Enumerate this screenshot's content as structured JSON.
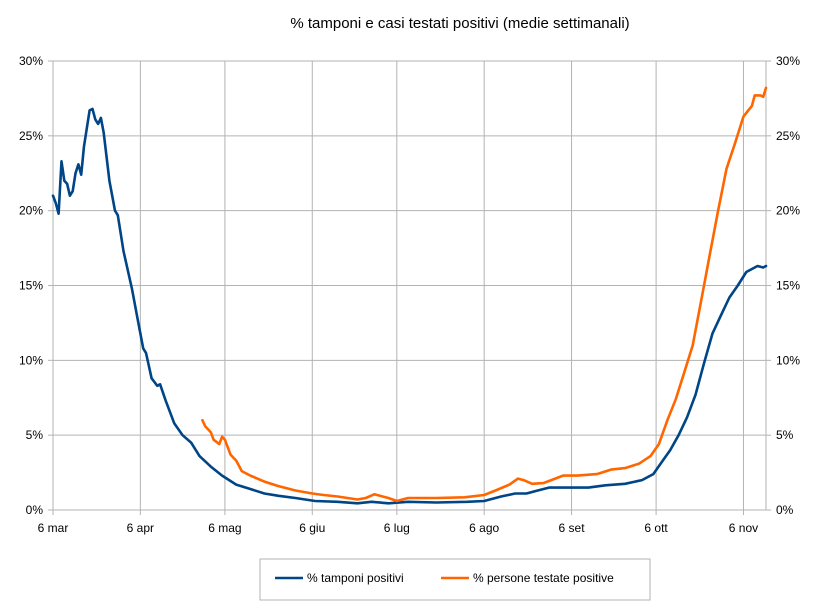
{
  "chart_data": {
    "type": "line",
    "title": "% tamponi e casi testati positivi (medie settimanali)",
    "xlabel": "",
    "ylabel": "",
    "x_range": [
      "2020-03-06",
      "2020-11-14"
    ],
    "ylim": [
      0,
      30
    ],
    "y_ticks": [
      "0%",
      "5%",
      "10%",
      "15%",
      "20%",
      "25%",
      "30%"
    ],
    "y_ticks_right": [
      "0%",
      "5%",
      "10%",
      "15%",
      "20%",
      "25%",
      "30%"
    ],
    "x_ticks": [
      {
        "date": "2020-03-06",
        "label": "6 mar"
      },
      {
        "date": "2020-04-06",
        "label": "6 apr"
      },
      {
        "date": "2020-05-06",
        "label": "6 mag"
      },
      {
        "date": "2020-06-06",
        "label": "6 giu"
      },
      {
        "date": "2020-07-06",
        "label": "6 lug"
      },
      {
        "date": "2020-08-06",
        "label": "6 ago"
      },
      {
        "date": "2020-09-06",
        "label": "6 set"
      },
      {
        "date": "2020-10-06",
        "label": "6 ott"
      },
      {
        "date": "2020-11-06",
        "label": "6 nov"
      }
    ],
    "grid": true,
    "legend_position": "bottom",
    "series": [
      {
        "name": "% tamponi positivi",
        "color": "#004586",
        "points": [
          [
            "2020-03-06",
            21.0
          ],
          [
            "2020-03-07",
            20.5
          ],
          [
            "2020-03-08",
            19.8
          ],
          [
            "2020-03-09",
            23.3
          ],
          [
            "2020-03-10",
            22.0
          ],
          [
            "2020-03-11",
            21.8
          ],
          [
            "2020-03-12",
            21.0
          ],
          [
            "2020-03-13",
            21.3
          ],
          [
            "2020-03-14",
            22.5
          ],
          [
            "2020-03-15",
            23.1
          ],
          [
            "2020-03-16",
            22.4
          ],
          [
            "2020-03-17",
            24.3
          ],
          [
            "2020-03-19",
            26.7
          ],
          [
            "2020-03-20",
            26.8
          ],
          [
            "2020-03-21",
            26.1
          ],
          [
            "2020-03-22",
            25.8
          ],
          [
            "2020-03-23",
            26.2
          ],
          [
            "2020-03-24",
            25.2
          ],
          [
            "2020-03-26",
            22.0
          ],
          [
            "2020-03-28",
            20.0
          ],
          [
            "2020-03-29",
            19.7
          ],
          [
            "2020-03-31",
            17.3
          ],
          [
            "2020-04-03",
            14.8
          ],
          [
            "2020-04-05",
            12.8
          ],
          [
            "2020-04-07",
            10.8
          ],
          [
            "2020-04-08",
            10.5
          ],
          [
            "2020-04-10",
            8.8
          ],
          [
            "2020-04-12",
            8.3
          ],
          [
            "2020-04-13",
            8.4
          ],
          [
            "2020-04-15",
            7.3
          ],
          [
            "2020-04-18",
            5.8
          ],
          [
            "2020-04-21",
            5.0
          ],
          [
            "2020-04-24",
            4.5
          ],
          [
            "2020-04-27",
            3.6
          ],
          [
            "2020-05-01",
            2.9
          ],
          [
            "2020-05-05",
            2.3
          ],
          [
            "2020-05-10",
            1.7
          ],
          [
            "2020-05-15",
            1.4
          ],
          [
            "2020-05-20",
            1.1
          ],
          [
            "2020-05-25",
            0.95
          ],
          [
            "2020-05-31",
            0.8
          ],
          [
            "2020-06-07",
            0.6
          ],
          [
            "2020-06-15",
            0.55
          ],
          [
            "2020-06-22",
            0.45
          ],
          [
            "2020-06-27",
            0.55
          ],
          [
            "2020-07-03",
            0.45
          ],
          [
            "2020-07-10",
            0.55
          ],
          [
            "2020-07-20",
            0.5
          ],
          [
            "2020-07-31",
            0.55
          ],
          [
            "2020-08-06",
            0.6
          ],
          [
            "2020-08-12",
            0.9
          ],
          [
            "2020-08-17",
            1.1
          ],
          [
            "2020-08-21",
            1.1
          ],
          [
            "2020-08-25",
            1.3
          ],
          [
            "2020-08-29",
            1.5
          ],
          [
            "2020-09-05",
            1.5
          ],
          [
            "2020-09-12",
            1.5
          ],
          [
            "2020-09-18",
            1.65
          ],
          [
            "2020-09-25",
            1.75
          ],
          [
            "2020-10-01",
            2.0
          ],
          [
            "2020-10-05",
            2.4
          ],
          [
            "2020-10-08",
            3.2
          ],
          [
            "2020-10-11",
            4.0
          ],
          [
            "2020-10-14",
            5.0
          ],
          [
            "2020-10-17",
            6.2
          ],
          [
            "2020-10-20",
            7.7
          ],
          [
            "2020-10-23",
            9.8
          ],
          [
            "2020-10-26",
            11.8
          ],
          [
            "2020-10-29",
            13.0
          ],
          [
            "2020-11-01",
            14.2
          ],
          [
            "2020-11-04",
            15.0
          ],
          [
            "2020-11-07",
            15.9
          ],
          [
            "2020-11-09",
            16.1
          ],
          [
            "2020-11-11",
            16.3
          ],
          [
            "2020-11-13",
            16.2
          ],
          [
            "2020-11-14",
            16.3
          ]
        ]
      },
      {
        "name": "% persone testate positive",
        "color": "#ff6600",
        "points": [
          [
            "2020-04-28",
            6.0
          ],
          [
            "2020-04-29",
            5.6
          ],
          [
            "2020-05-01",
            5.2
          ],
          [
            "2020-05-02",
            4.7
          ],
          [
            "2020-05-04",
            4.4
          ],
          [
            "2020-05-05",
            4.9
          ],
          [
            "2020-05-06",
            4.7
          ],
          [
            "2020-05-08",
            3.7
          ],
          [
            "2020-05-10",
            3.3
          ],
          [
            "2020-05-12",
            2.6
          ],
          [
            "2020-05-15",
            2.3
          ],
          [
            "2020-05-20",
            1.9
          ],
          [
            "2020-05-25",
            1.6
          ],
          [
            "2020-05-31",
            1.3
          ],
          [
            "2020-06-06",
            1.1
          ],
          [
            "2020-06-10",
            1.0
          ],
          [
            "2020-06-15",
            0.9
          ],
          [
            "2020-06-22",
            0.7
          ],
          [
            "2020-06-25",
            0.8
          ],
          [
            "2020-06-28",
            1.05
          ],
          [
            "2020-07-03",
            0.8
          ],
          [
            "2020-07-06",
            0.6
          ],
          [
            "2020-07-10",
            0.8
          ],
          [
            "2020-07-20",
            0.8
          ],
          [
            "2020-07-30",
            0.85
          ],
          [
            "2020-08-06",
            1.0
          ],
          [
            "2020-08-10",
            1.3
          ],
          [
            "2020-08-15",
            1.7
          ],
          [
            "2020-08-18",
            2.1
          ],
          [
            "2020-08-20",
            2.0
          ],
          [
            "2020-08-23",
            1.75
          ],
          [
            "2020-08-27",
            1.8
          ],
          [
            "2020-09-03",
            2.3
          ],
          [
            "2020-09-08",
            2.3
          ],
          [
            "2020-09-15",
            2.4
          ],
          [
            "2020-09-20",
            2.7
          ],
          [
            "2020-09-25",
            2.8
          ],
          [
            "2020-09-30",
            3.1
          ],
          [
            "2020-10-04",
            3.6
          ],
          [
            "2020-10-07",
            4.4
          ],
          [
            "2020-10-10",
            6.0
          ],
          [
            "2020-10-13",
            7.4
          ],
          [
            "2020-10-16",
            9.2
          ],
          [
            "2020-10-19",
            11.0
          ],
          [
            "2020-10-22",
            14.0
          ],
          [
            "2020-10-25",
            17.0
          ],
          [
            "2020-10-28",
            20.0
          ],
          [
            "2020-10-31",
            22.8
          ],
          [
            "2020-11-03",
            24.5
          ],
          [
            "2020-11-06",
            26.3
          ],
          [
            "2020-11-09",
            27.0
          ],
          [
            "2020-11-10",
            27.7
          ],
          [
            "2020-11-12",
            27.7
          ],
          [
            "2020-11-13",
            27.6
          ],
          [
            "2020-11-14",
            28.2
          ]
        ]
      }
    ]
  }
}
